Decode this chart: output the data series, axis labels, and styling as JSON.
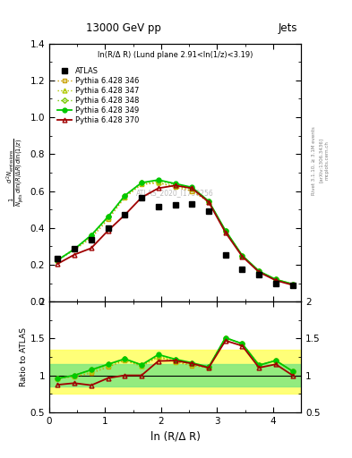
{
  "title": "13000 GeV pp",
  "title_right": "Jets",
  "xlabel": "ln (R/Δ R)",
  "annotation": "ln(R/Δ R) (Lund plane 2.91<ln(1/z)<3.19)",
  "watermark": "ATLAS_2020_I1790256",
  "right_label": "Rivet 3.1.10, ≥ 3.1M events",
  "right_label2": "[arXiv:1306.3436]",
  "right_label3": "mcplots.cern.ch",
  "x_data": [
    0.15,
    0.45,
    0.75,
    1.05,
    1.35,
    1.65,
    1.95,
    2.25,
    2.55,
    2.85,
    3.15,
    3.45,
    3.75,
    4.05,
    4.35
  ],
  "y_atlas": [
    0.235,
    0.285,
    0.335,
    0.4,
    0.47,
    0.565,
    0.515,
    0.525,
    0.53,
    0.49,
    0.255,
    0.175,
    0.145,
    0.1,
    0.09
  ],
  "y_346": [
    0.225,
    0.28,
    0.345,
    0.445,
    0.565,
    0.635,
    0.645,
    0.62,
    0.6,
    0.54,
    0.385,
    0.25,
    0.165,
    0.12,
    0.095
  ],
  "y_347": [
    0.225,
    0.285,
    0.355,
    0.455,
    0.57,
    0.64,
    0.645,
    0.625,
    0.61,
    0.545,
    0.385,
    0.25,
    0.165,
    0.12,
    0.095
  ],
  "y_348": [
    0.225,
    0.285,
    0.36,
    0.46,
    0.575,
    0.645,
    0.655,
    0.635,
    0.615,
    0.545,
    0.385,
    0.25,
    0.165,
    0.12,
    0.095
  ],
  "y_349": [
    0.225,
    0.285,
    0.36,
    0.46,
    0.575,
    0.645,
    0.66,
    0.64,
    0.62,
    0.545,
    0.385,
    0.25,
    0.165,
    0.12,
    0.095
  ],
  "y_370": [
    0.205,
    0.255,
    0.29,
    0.385,
    0.47,
    0.565,
    0.615,
    0.63,
    0.615,
    0.54,
    0.375,
    0.245,
    0.16,
    0.115,
    0.09
  ],
  "color_346": "#c8a000",
  "color_347": "#b0c800",
  "color_348": "#78c800",
  "color_349": "#00c800",
  "color_370": "#a00000",
  "ylim_main": [
    0.0,
    1.4
  ],
  "ylim_ratio": [
    0.5,
    2.0
  ],
  "xlim": [
    0.0,
    4.5
  ],
  "band_yellow_low": 0.75,
  "band_yellow_high": 1.35,
  "band_green_low": 0.85,
  "band_green_high": 1.15
}
